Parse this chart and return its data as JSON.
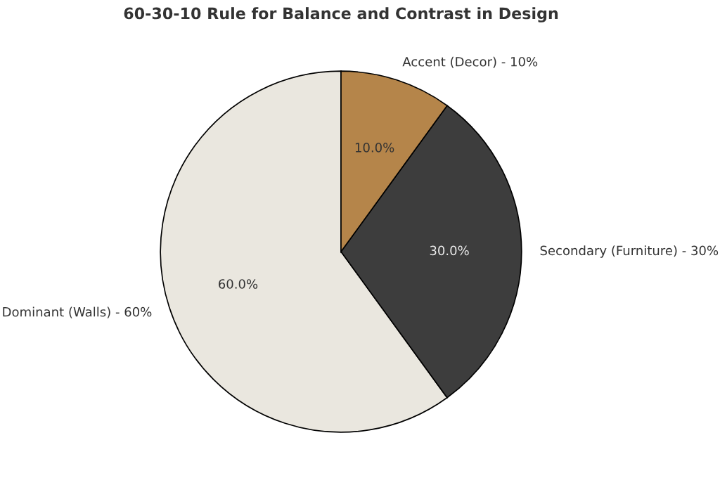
{
  "chart_data": {
    "type": "pie",
    "title": "60-30-10 Rule for Balance and Contrast in Design",
    "categories": [
      "Dominant (Walls) - 60%",
      "Secondary (Furniture) - 30%",
      "Accent (Decor) - 10%"
    ],
    "values": [
      60,
      30,
      10
    ],
    "colors": [
      "#eae7df",
      "#3d3d3d",
      "#b5854a"
    ],
    "value_labels": [
      "60.0%",
      "30.0%",
      "10.0%"
    ]
  }
}
